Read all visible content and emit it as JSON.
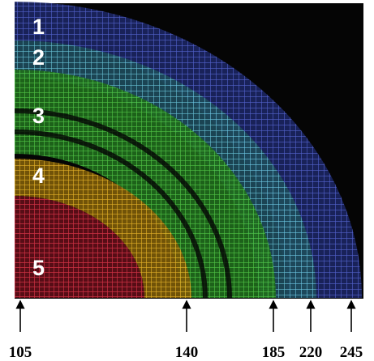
{
  "shell_labels": [
    "1",
    "2",
    "3",
    "4",
    "5"
  ],
  "radius_markers": [
    "105",
    "140",
    "185",
    "220",
    "245"
  ]
}
